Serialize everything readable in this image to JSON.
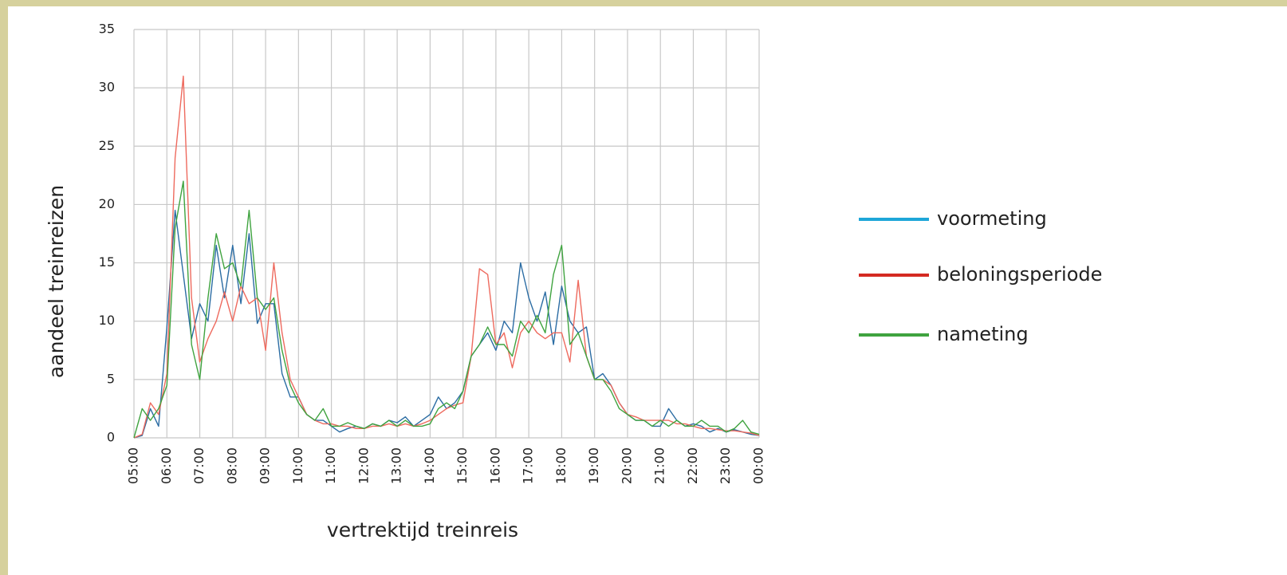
{
  "chart_data": {
    "type": "line",
    "xlabel": "vertrektijd treinreis",
    "ylabel": "aandeel treinreizen",
    "categories": [
      "05:00",
      null,
      null,
      null,
      "06:00",
      null,
      null,
      null,
      "07:00",
      null,
      null,
      null,
      "08:00",
      null,
      null,
      null,
      "09:00",
      null,
      null,
      null,
      "10:00",
      null,
      null,
      null,
      "11:00",
      null,
      null,
      null,
      "12:00",
      null,
      null,
      null,
      "13:00",
      null,
      null,
      null,
      "14:00",
      null,
      null,
      null,
      "15:00",
      null,
      null,
      null,
      "16:00",
      null,
      null,
      null,
      "17:00",
      null,
      null,
      null,
      "18:00",
      null,
      null,
      null,
      "19:00",
      null,
      null,
      null,
      "20:00",
      null,
      null,
      null,
      "21:00",
      null,
      null,
      null,
      "22:00",
      null,
      null,
      null,
      "23:00",
      null,
      null,
      null,
      "00:00"
    ],
    "series": [
      {
        "name": "voormeting",
        "color": "#2b6ca3",
        "legend_color": "#1ea6d8",
        "values": [
          0,
          0.2,
          2.5,
          1,
          9.5,
          19.5,
          14,
          8.5,
          11.5,
          10,
          16.5,
          12,
          16.5,
          11.5,
          17.5,
          9.8,
          11.5,
          11.5,
          5.5,
          3.5,
          3.5,
          2,
          1.5,
          1.5,
          1,
          0.5,
          0.8,
          1,
          0.8,
          1.2,
          1,
          1.5,
          1.3,
          1.8,
          1,
          1.5,
          2,
          3.5,
          2.5,
          3,
          4,
          7,
          8,
          9,
          7.5,
          10,
          9,
          15,
          12,
          10,
          12.5,
          8,
          13,
          10,
          9,
          9.5,
          5,
          5.5,
          4.5,
          3,
          2,
          1.5,
          1.5,
          1,
          1,
          2.5,
          1.5,
          1,
          1.2,
          1,
          0.5,
          0.8,
          0.5,
          0.7,
          0.5,
          0.3,
          0.2
        ]
      },
      {
        "name": "beloningsperiode",
        "color": "#ee6a5e",
        "legend_color": "#d42a22",
        "values": [
          0,
          0.3,
          3,
          2,
          5.5,
          24,
          31,
          12,
          6.5,
          8.5,
          10,
          12.5,
          10,
          13,
          11.5,
          12,
          7.5,
          15,
          9,
          5,
          3.5,
          2,
          1.5,
          1.2,
          1.2,
          1,
          1,
          0.8,
          0.8,
          1,
          1,
          1.2,
          1,
          1.2,
          1,
          1.2,
          1.5,
          2,
          2.5,
          2.8,
          3,
          7,
          14.5,
          14,
          8,
          9,
          6,
          9,
          10,
          9,
          8.5,
          9,
          9,
          6.5,
          13.5,
          7,
          5,
          5,
          4.5,
          3,
          2,
          1.8,
          1.5,
          1.5,
          1.5,
          1.5,
          1.2,
          1.2,
          1,
          0.8,
          0.8,
          0.7,
          0.6,
          0.6,
          0.5,
          0.4,
          0.2
        ]
      },
      {
        "name": "nameting",
        "color": "#3fa33f",
        "legend_color": "#3fa33f",
        "values": [
          0,
          2.5,
          1.5,
          2.5,
          4.5,
          18,
          22,
          8,
          5,
          12,
          17.5,
          14.5,
          15,
          13,
          19.5,
          12,
          11,
          12,
          7.5,
          4.5,
          3,
          2,
          1.5,
          2.5,
          1,
          1,
          1.3,
          1,
          0.8,
          1.2,
          1,
          1.5,
          1,
          1.5,
          1,
          1,
          1.2,
          2.5,
          3,
          2.5,
          4,
          7,
          8,
          9.5,
          8,
          8,
          7,
          10,
          9,
          10.5,
          9,
          14,
          16.5,
          8,
          9,
          7,
          5,
          5,
          4,
          2.5,
          2,
          1.5,
          1.5,
          1,
          1.5,
          1,
          1.5,
          1,
          1,
          1.5,
          1,
          1,
          0.5,
          0.8,
          1.5,
          0.5,
          0.3
        ]
      }
    ],
    "ylim": [
      0,
      35
    ],
    "yticks": [
      0,
      5,
      10,
      15,
      20,
      25,
      30,
      35
    ],
    "grid": true,
    "legend": "right"
  }
}
